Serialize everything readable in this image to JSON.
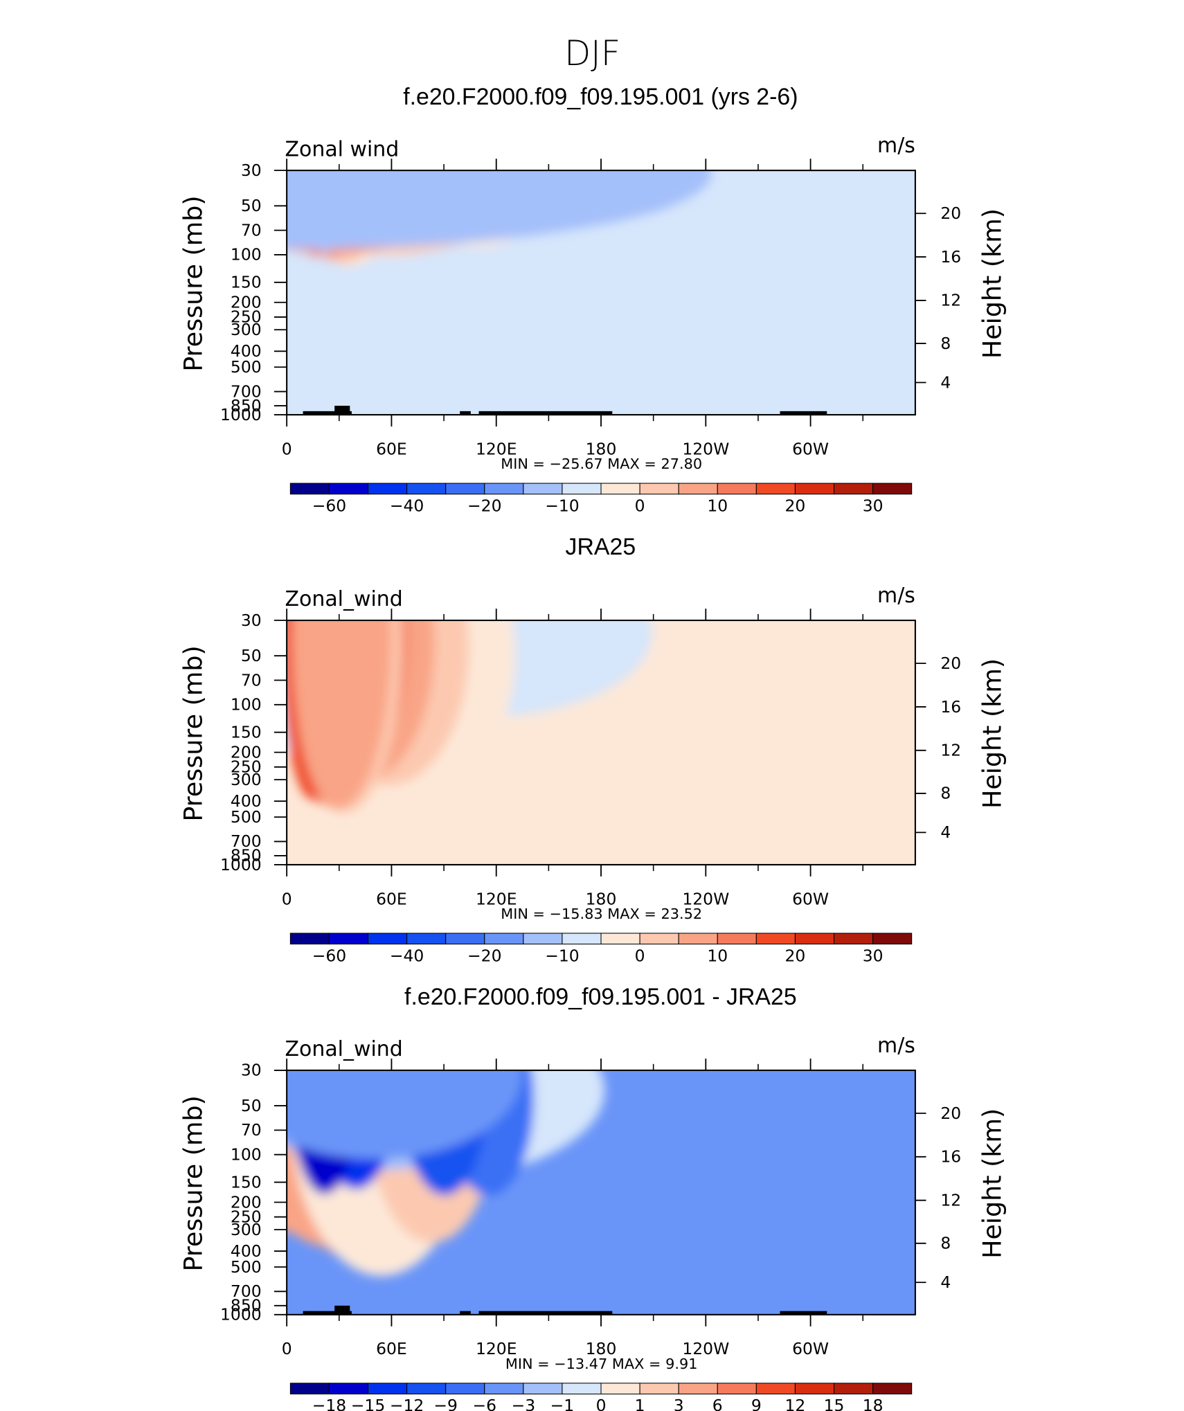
{
  "figure_title": "DJF",
  "chart_data": [
    {
      "type": "heatmap",
      "title": "f.e20.F2000.f09_f09.195.001 (yrs 2-6)",
      "left_label": "Zonal wind",
      "right_label": "m/s",
      "ylabel": "Pressure (mb)",
      "ylabel_right": "Height (km)",
      "y_scale": "log",
      "y_ticks": [
        "30",
        "50",
        "70",
        "100",
        "150",
        "200",
        "250",
        "300",
        "400",
        "500",
        "700",
        "850",
        "1000"
      ],
      "y_right_ticks": [
        "20",
        "16",
        "12",
        "8",
        "4"
      ],
      "x_ticks": [
        "0",
        "60E",
        "120E",
        "180",
        "120W",
        "60W"
      ],
      "stats": "MIN = −25.67   MAX =   27.80",
      "colorbar_labels": [
        "−60",
        "−40",
        "−20",
        "−10",
        "0",
        "10",
        "20",
        "30"
      ],
      "colors": [
        "#00008b",
        "#0000cd",
        "#0033ee",
        "#1552f0",
        "#3a6ff5",
        "#6a95f8",
        "#a4c0fa",
        "#d6e6fb",
        "#fde8d8",
        "#fcc9b0",
        "#f9a486",
        "#f57b5c",
        "#f04a25",
        "#d92f10",
        "#b31f0a",
        "#7f0a0a"
      ]
    },
    {
      "type": "heatmap",
      "title": "JRA25",
      "left_label": "Zonal_wind",
      "right_label": "m/s",
      "ylabel": "Pressure (mb)",
      "ylabel_right": "Height (km)",
      "y_scale": "log",
      "y_ticks": [
        "30",
        "50",
        "70",
        "100",
        "150",
        "200",
        "250",
        "300",
        "400",
        "500",
        "700",
        "850",
        "1000"
      ],
      "y_right_ticks": [
        "20",
        "16",
        "12",
        "8",
        "4"
      ],
      "x_ticks": [
        "0",
        "60E",
        "120E",
        "180",
        "120W",
        "60W"
      ],
      "stats": "MIN = −15.83   MAX =   23.52",
      "colorbar_labels": [
        "−60",
        "−40",
        "−20",
        "−10",
        "0",
        "10",
        "20",
        "30"
      ],
      "colors": [
        "#00008b",
        "#0000cd",
        "#0033ee",
        "#1552f0",
        "#3a6ff5",
        "#6a95f8",
        "#a4c0fa",
        "#d6e6fb",
        "#fde8d8",
        "#fcc9b0",
        "#f9a486",
        "#f57b5c",
        "#f04a25",
        "#d92f10",
        "#b31f0a",
        "#7f0a0a"
      ]
    },
    {
      "type": "heatmap",
      "title": "f.e20.F2000.f09_f09.195.001 - JRA25",
      "left_label": "Zonal_wind",
      "right_label": "m/s",
      "ylabel": "Pressure (mb)",
      "ylabel_right": "Height (km)",
      "y_scale": "log",
      "y_ticks": [
        "30",
        "50",
        "70",
        "100",
        "150",
        "200",
        "250",
        "300",
        "400",
        "500",
        "700",
        "850",
        "1000"
      ],
      "y_right_ticks": [
        "20",
        "16",
        "12",
        "8",
        "4"
      ],
      "x_ticks": [
        "0",
        "60E",
        "120E",
        "180",
        "120W",
        "60W"
      ],
      "stats": "MIN = −13.47   MAX =    9.91",
      "colorbar_labels": [
        "−18",
        "−15",
        "−12",
        "−9",
        "−6",
        "−3",
        "−1",
        "0",
        "1",
        "3",
        "6",
        "9",
        "12",
        "15",
        "18"
      ],
      "colors": [
        "#00008b",
        "#0000cd",
        "#0033ee",
        "#1552f0",
        "#3a6ff5",
        "#6a95f8",
        "#a4c0fa",
        "#d6e6fb",
        "#fde8d8",
        "#fcc9b0",
        "#f9a486",
        "#f57b5c",
        "#f04a25",
        "#d92f10",
        "#b31f0a",
        "#7f0a0a"
      ]
    }
  ]
}
